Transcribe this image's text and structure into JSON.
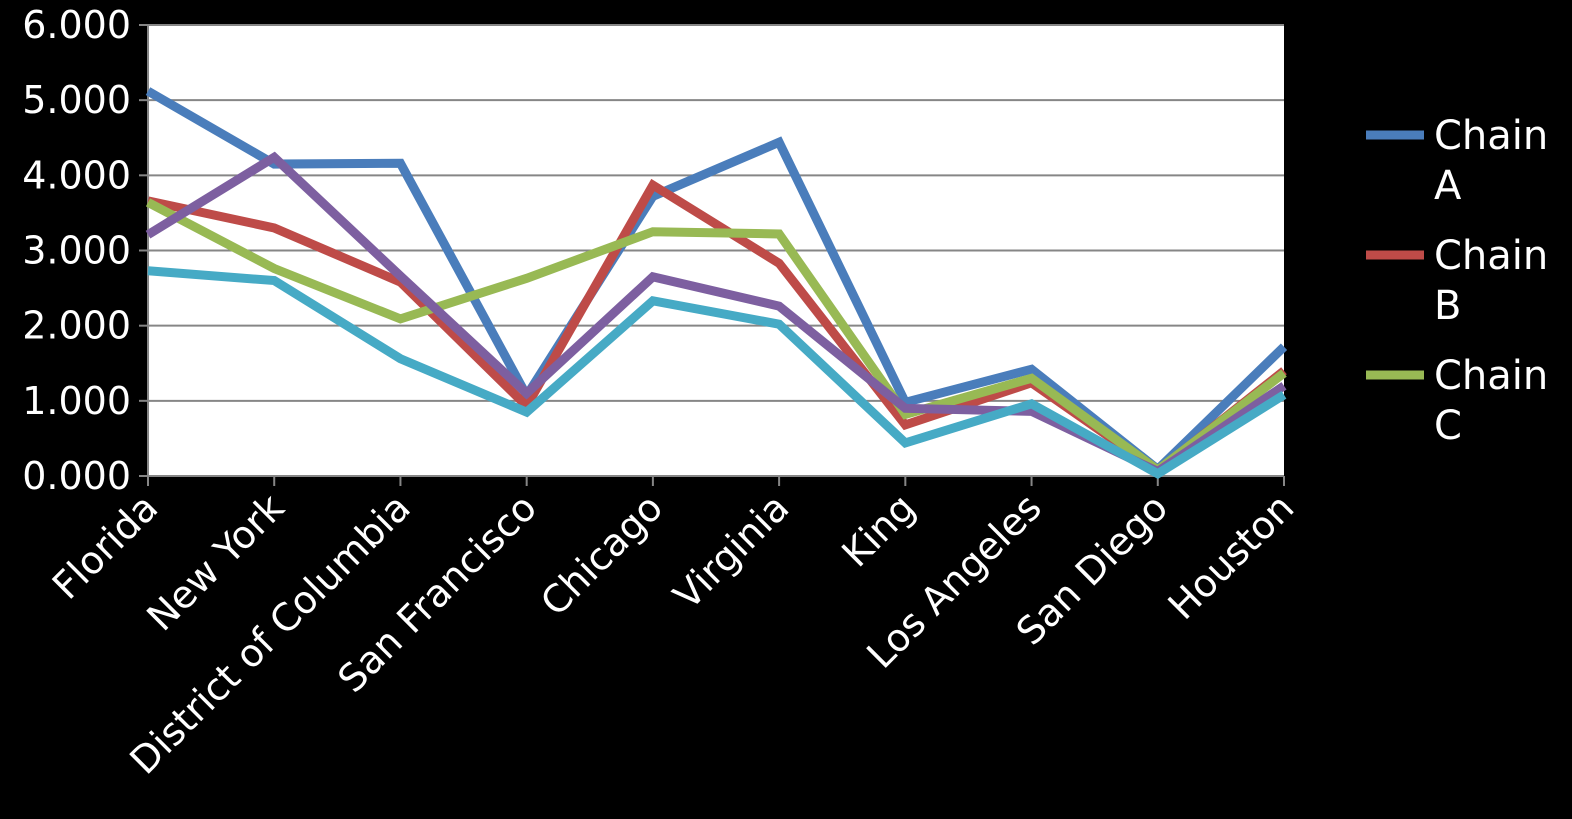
{
  "chart_data": {
    "type": "line",
    "title": "",
    "xlabel": "",
    "ylabel": "",
    "categories": [
      "Florida",
      "New York",
      "District of Columbia",
      "San Francisco",
      "Chicago",
      "Virginia",
      "King",
      "Los Angeles",
      "San Diego",
      "Houston"
    ],
    "ylim": [
      0,
      6
    ],
    "y_ticks": [
      0,
      1,
      2,
      3,
      4,
      5,
      6
    ],
    "y_tick_labels": [
      "0.000",
      "1.000",
      "2.000",
      "3.000",
      "4.000",
      "5.000",
      "6.000"
    ],
    "grid": true,
    "legend_placement": "right",
    "plot_background": "#ffffff",
    "page_background": "#000000",
    "gridline_color": "#868686",
    "series": [
      {
        "name": "Chain A",
        "color": "#4a7dbb",
        "values": [
          5.12,
          4.15,
          4.16,
          1.07,
          3.72,
          4.44,
          0.98,
          1.42,
          0.09,
          1.72
        ],
        "legend": true
      },
      {
        "name": "Chain B",
        "color": "#be4b48",
        "values": [
          3.66,
          3.3,
          2.58,
          0.93,
          3.87,
          2.83,
          0.68,
          1.24,
          0.07,
          1.4
        ],
        "legend": true
      },
      {
        "name": "Chain C",
        "color": "#98b954",
        "values": [
          3.64,
          2.76,
          2.09,
          2.63,
          3.25,
          3.22,
          0.82,
          1.3,
          0.08,
          1.37
        ],
        "legend": true
      },
      {
        "color": "#7d5fa0",
        "values": [
          3.21,
          4.24,
          2.66,
          1.1,
          2.65,
          2.26,
          0.9,
          0.86,
          0.06,
          1.2
        ],
        "legend": false
      },
      {
        "color": "#46aac5",
        "values": [
          2.73,
          2.6,
          1.56,
          0.85,
          2.33,
          2.02,
          0.44,
          0.96,
          0.03,
          1.08
        ],
        "legend": false
      }
    ]
  }
}
